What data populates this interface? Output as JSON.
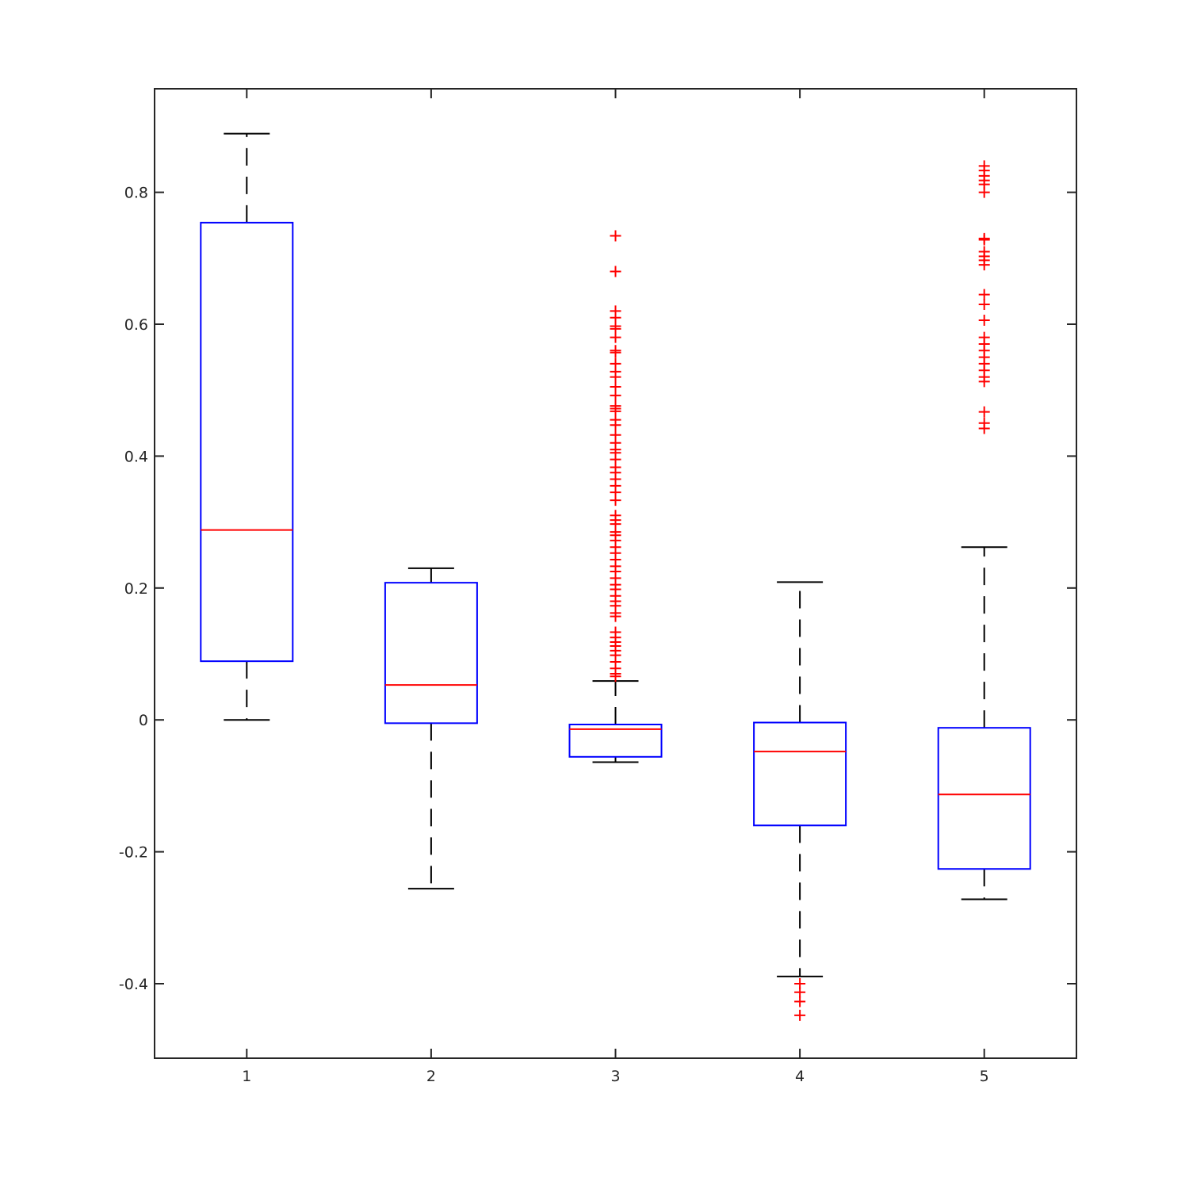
{
  "chart_data": {
    "type": "box",
    "categories": [
      "1",
      "2",
      "3",
      "4",
      "5"
    ],
    "ylim": [
      -0.513,
      0.957
    ],
    "xlim": [
      0.5,
      5.5
    ],
    "yticks": [
      -0.4,
      -0.2,
      0,
      0.2,
      0.4,
      0.6,
      0.8
    ],
    "ytick_labels": [
      "-0.4",
      "-0.2",
      "0",
      "0.2",
      "0.4",
      "0.6",
      "0.8"
    ],
    "grid": false,
    "legend": "none",
    "title": "",
    "xlabel": "",
    "ylabel": "",
    "colors": {
      "box": "#0000ff",
      "median": "#ff0000",
      "whisker": "#000000",
      "outlier": "#ff0000",
      "axes": "#262626"
    },
    "boxes": [
      {
        "category": "1",
        "whisker_low": 0.0,
        "q1": 0.089,
        "median": 0.288,
        "q3": 0.754,
        "whisker_high": 0.889,
        "outliers": []
      },
      {
        "category": "2",
        "whisker_low": -0.256,
        "q1": -0.005,
        "median": 0.053,
        "q3": 0.208,
        "whisker_high": 0.23,
        "outliers": []
      },
      {
        "category": "3",
        "whisker_low": -0.064,
        "q1": -0.056,
        "median": -0.014,
        "q3": -0.007,
        "whisker_high": 0.059,
        "outliers": [
          0.734,
          0.68,
          0.62,
          0.61,
          0.597,
          0.593,
          0.58,
          0.56,
          0.557,
          0.54,
          0.528,
          0.52,
          0.505,
          0.492,
          0.476,
          0.472,
          0.468,
          0.455,
          0.447,
          0.432,
          0.42,
          0.41,
          0.405,
          0.395,
          0.383,
          0.375,
          0.365,
          0.355,
          0.345,
          0.333,
          0.31,
          0.303,
          0.297,
          0.285,
          0.28,
          0.272,
          0.262,
          0.253,
          0.243,
          0.233,
          0.225,
          0.215,
          0.205,
          0.198,
          0.188,
          0.18,
          0.173,
          0.162,
          0.157,
          0.133,
          0.125,
          0.118,
          0.112,
          0.105,
          0.098,
          0.088,
          0.078,
          0.07,
          0.066
        ]
      },
      {
        "category": "4",
        "whisker_low": -0.389,
        "q1": -0.16,
        "median": -0.048,
        "q3": -0.004,
        "whisker_high": 0.209,
        "outliers": [
          -0.4,
          -0.413,
          -0.427,
          -0.448
        ]
      },
      {
        "category": "5",
        "whisker_low": -0.272,
        "q1": -0.226,
        "median": -0.113,
        "q3": -0.012,
        "whisker_high": 0.262,
        "outliers": [
          0.84,
          0.833,
          0.825,
          0.818,
          0.812,
          0.8,
          0.73,
          0.728,
          0.71,
          0.703,
          0.697,
          0.69,
          0.645,
          0.63,
          0.606,
          0.58,
          0.57,
          0.56,
          0.55,
          0.54,
          0.53,
          0.52,
          0.513,
          0.467,
          0.45,
          0.442
        ]
      }
    ]
  }
}
